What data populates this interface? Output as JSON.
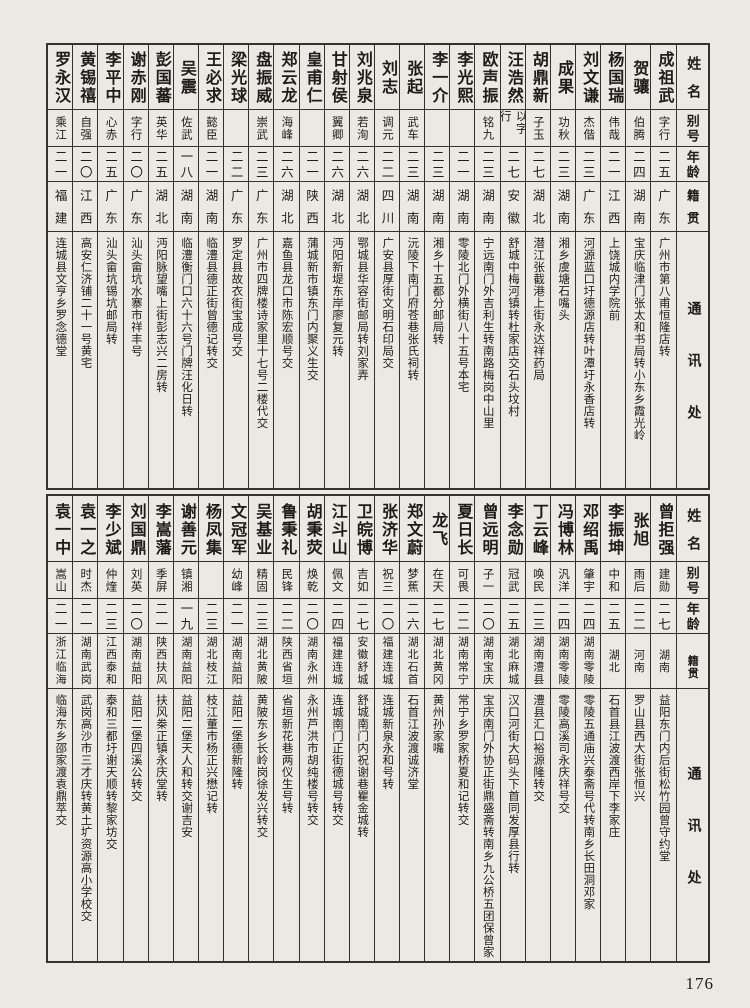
{
  "page": {
    "number": "176"
  },
  "colors": {
    "paper": "#ebe9e3",
    "ink": "#1d1c19",
    "line": "#34322c"
  },
  "headers": {
    "name": "姓名",
    "alias": "别号",
    "age": "年龄",
    "native": "籍贯",
    "address": "通讯处"
  },
  "tables": [
    {
      "people": [
        {
          "name": "成祖武",
          "alias": "字行",
          "age": "二五",
          "native": "广东",
          "address": "广州市第八甫恒隆店转"
        },
        {
          "name": "贺骧",
          "alias": "伯腾",
          "age": "二四",
          "native": "湖南",
          "address": "宝庆临津门张太和书局转小东乡霞光岭"
        },
        {
          "name": "杨国瑞",
          "alias": "伟哉",
          "age": "二一",
          "native": "江西",
          "address": "上饶城内学院前"
        },
        {
          "name": "刘文谦",
          "alias": "杰偕",
          "age": "二三",
          "native": "广东",
          "address": "河源蓝口圩德源店转叶潭圩永香店转"
        },
        {
          "name": "成果",
          "alias": "功秋",
          "age": "二三",
          "native": "湖南",
          "address": "湘乡虞塘石嘴头"
        },
        {
          "name": "胡鼎新",
          "alias": "子玉",
          "age": "二七",
          "native": "湖北",
          "address": "潜江张截港上街永达祥药局"
        },
        {
          "name": "汪浩然",
          "alias": "以字行",
          "age": "二七",
          "native": "安徽",
          "address": "舒城中梅河镇转杜家店交石头坟村"
        },
        {
          "name": "欧声振",
          "alias": "铭九",
          "age": "二三",
          "native": "湖南",
          "address": "宁远南门外吉利生转南路梅岗中山里"
        },
        {
          "name": "李光熙",
          "alias": "",
          "age": "二一",
          "native": "湖南",
          "address": "零陵北门外横街八十五号本宅"
        },
        {
          "name": "李一介",
          "alias": "",
          "age": "二三",
          "native": "湖南",
          "address": "湘乡十五都分邮局转"
        },
        {
          "name": "张起",
          "alias": "武车",
          "age": "二三",
          "native": "湖南",
          "address": "沅陵下南门府苍巷张氏祠转"
        },
        {
          "name": "刘志",
          "alias": "调元",
          "age": "二二",
          "native": "四川",
          "address": "广安县厚街文明石印局交"
        },
        {
          "name": "刘兆泉",
          "alias": "若洵",
          "age": "二六",
          "native": "湖北",
          "address": "鄂城县华容街邮局转刘家弄"
        },
        {
          "name": "甘射侯",
          "alias": "翼卿",
          "age": "二六",
          "native": "湖北",
          "address": "沔阳新堤东岸廖复元转"
        },
        {
          "name": "皇甫仁",
          "alias": "",
          "age": "二一",
          "native": "陕西",
          "address": "蒲城新市镇东门内聚义生交"
        },
        {
          "name": "郑云龙",
          "alias": "海峰",
          "age": "二六",
          "native": "湖北",
          "address": "嘉鱼县龙口市陈宏顺号交"
        },
        {
          "name": "盘振威",
          "alias": "崇武",
          "age": "二三",
          "native": "广东",
          "address": "广州市四牌楼诗家里十七号二楼代交"
        },
        {
          "name": "梁光球",
          "alias": "",
          "age": "二二",
          "native": "广东",
          "address": "罗定县故衣街宝成号交"
        },
        {
          "name": "王必求",
          "alias": "懿臣",
          "age": "二一",
          "native": "湖南",
          "address": "临澧县德正街曾德记转交"
        },
        {
          "name": "吴震",
          "alias": "佐武",
          "age": "一八",
          "native": "湖南",
          "address": "临澧衡门口六十六号门牌汪化日转"
        },
        {
          "name": "彭国蕃",
          "alias": "英华",
          "age": "二五",
          "native": "湖北",
          "address": "沔阳脉望嘴上街彭志兴二房转"
        },
        {
          "name": "谢赤刚",
          "alias": "字行",
          "age": "二〇",
          "native": "广东",
          "address": "汕头畲坑水寨市祥丰号"
        },
        {
          "name": "李平中",
          "alias": "心赤",
          "age": "二五",
          "native": "广东",
          "address": "汕头畲坑锡坑邮局转"
        },
        {
          "name": "黄锡禧",
          "alias": "自强",
          "age": "二〇",
          "native": "江西",
          "address": "高安仁济铺二十一号黄宅"
        },
        {
          "name": "罗永汉",
          "alias": "乘江",
          "age": "二一",
          "native": "福建",
          "address": "连城县文亨乡罗念德堂"
        }
      ]
    },
    {
      "people": [
        {
          "name": "曾拒强",
          "alias": "建勋",
          "age": "二七",
          "native": "湖南",
          "address": "益阳东门内后街松竹园曾守约堂"
        },
        {
          "name": "张旭",
          "alias": "雨后",
          "age": "二二",
          "native": "河南",
          "address": "罗山县西大街张恒兴"
        },
        {
          "name": "李振坤",
          "alias": "中和",
          "age": "二五",
          "native": "湖北",
          "address": "石首县江波渡西岸下李家庄"
        },
        {
          "name": "邓绍禹",
          "alias": "肇宇",
          "age": "二四",
          "native": "湖南零陵",
          "address": "零陵五通庙兴泰斋号代转南乡长田洞邓家"
        },
        {
          "name": "冯博林",
          "alias": "汎洋",
          "age": "二四",
          "native": "湖南零陵",
          "address": "零陵高溪司永庆祥号交"
        },
        {
          "name": "丁云峰",
          "alias": "唤民",
          "age": "二三",
          "native": "湖南澧县",
          "address": "澧县汇口裕源隆转交"
        },
        {
          "name": "李念勋",
          "alias": "冠武",
          "age": "二五",
          "native": "湖北麻城",
          "address": "汉口河街大码头下首同发厚县行转"
        },
        {
          "name": "曾远明",
          "alias": "子一",
          "age": "二〇",
          "native": "湖南宝庆",
          "address": "宝庆南门外协正街鼎盛斋转南乡九公桥五团保曾家"
        },
        {
          "name": "夏日长",
          "alias": "可畏",
          "age": "二二",
          "native": "湖南常宁",
          "address": "常宁乡罗家桥夏和记转交"
        },
        {
          "name": "龙飞",
          "alias": "在天",
          "age": "二七",
          "native": "湖北黄冈",
          "address": "黄州孙家嘴"
        },
        {
          "name": "郑文蔚",
          "alias": "梦蕉",
          "age": "二六",
          "native": "湖北石首",
          "address": "石首江波渡诚济堂"
        },
        {
          "name": "张济华",
          "alias": "祝三",
          "age": "二〇",
          "native": "福建连城",
          "address": "连城新泉永和号转"
        },
        {
          "name": "卫皖博",
          "alias": "吉如",
          "age": "二七",
          "native": "安徽舒城",
          "address": "舒城南门内祝谢巷瞿金城转"
        },
        {
          "name": "江斗山",
          "alias": "佩文",
          "age": "二四",
          "native": "福建连城",
          "address": "连城南门正街德城号转交"
        },
        {
          "name": "胡秉荧",
          "alias": "焕乾",
          "age": "二〇",
          "native": "湖南永州",
          "address": "永州芦洪市胡纯楼号转交"
        },
        {
          "name": "鲁秉礼",
          "alias": "民锋",
          "age": "二二",
          "native": "陕西省垣",
          "address": "省垣新花巷两仪生号转"
        },
        {
          "name": "吴基业",
          "alias": "精固",
          "age": "二三",
          "native": "湖北黄陂",
          "address": "黄陂东乡长岭岗徐发兴转交"
        },
        {
          "name": "文冠军",
          "alias": "幼峰",
          "age": "二一",
          "native": "湖南益阳",
          "address": "益阳二堡德新隆转"
        },
        {
          "name": "杨凤集",
          "alias": "",
          "age": "二三",
          "native": "湖北枝江",
          "address": "枝江董市杨正兴懋记转"
        },
        {
          "name": "谢善元",
          "alias": "镇湘",
          "age": "一九",
          "native": "湖南益阳",
          "address": "益阳二堡天人和转交谢吉安"
        },
        {
          "name": "李嵩藩",
          "alias": "季屏",
          "age": "二一",
          "native": "陕西扶风",
          "address": "扶风桊正镇永庆堂转"
        },
        {
          "name": "刘国鼎",
          "alias": "刘英",
          "age": "二〇",
          "native": "湖南益阳",
          "address": "益阳二堡四溪公转交"
        },
        {
          "name": "李少斌",
          "alias": "仲煃",
          "age": "二三",
          "native": "江西泰和",
          "address": "泰和三都圩谢天顺转黎家坊交"
        },
        {
          "name": "袁一之",
          "alias": "时杰",
          "age": "二一",
          "native": "湖南武岗",
          "address": "武岗高沙市三才庆转黄土圹资源高小学校交"
        },
        {
          "name": "袁一中",
          "alias": "嵩山",
          "age": "二一",
          "native": "浙江临海",
          "address": "临海东乡邵家渡袁鼎萃交"
        }
      ]
    }
  ]
}
